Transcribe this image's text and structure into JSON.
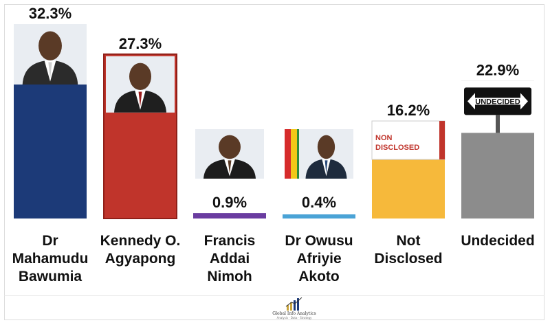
{
  "chart_data": {
    "type": "bar",
    "categories": [
      "Dr Mahamudu Bawumia",
      "Kennedy O. Agyapong",
      "Francis Addai Nimoh",
      "Dr Owusu Afriyie Akoto",
      "Not Disclosed",
      "Undecided"
    ],
    "category_lines": [
      [
        "Dr",
        "Mahamudu",
        "Bawumia"
      ],
      [
        "Kennedy O.",
        "Agyapong"
      ],
      [
        "Francis",
        "Addai",
        "Nimoh"
      ],
      [
        "Dr Owusu",
        "Afriyie",
        "Akoto"
      ],
      [
        "Not",
        "Disclosed"
      ],
      [
        "Undecided"
      ]
    ],
    "values": [
      32.3,
      27.3,
      0.9,
      0.4,
      16.2,
      22.9
    ],
    "value_labels": [
      "32.3%",
      "27.3%",
      "0.9%",
      "0.4%",
      "16.2%",
      "22.9%"
    ],
    "bar_colors": [
      "#1c3a78",
      "#c0342b",
      "#6a3ca0",
      "#4aa3d6",
      "#f6b93b",
      "#8c8c8c"
    ],
    "ylim": [
      0,
      35
    ],
    "title": "",
    "xlabel": "",
    "ylabel": "",
    "grid": false,
    "legend": "none"
  },
  "images": [
    {
      "icon": "portrait-photo"
    },
    {
      "icon": "portrait-photo"
    },
    {
      "icon": "portrait-photo"
    },
    {
      "icon": "portrait-photo"
    },
    {
      "icon": "non-disclosed-sign",
      "text": "NON DISCLOSED"
    },
    {
      "icon": "undecided-road-sign",
      "text": "UNDECIDED"
    }
  ],
  "logo": {
    "name": "Global Info Analytics",
    "tagline": "Analysis · Data · Strategy"
  }
}
